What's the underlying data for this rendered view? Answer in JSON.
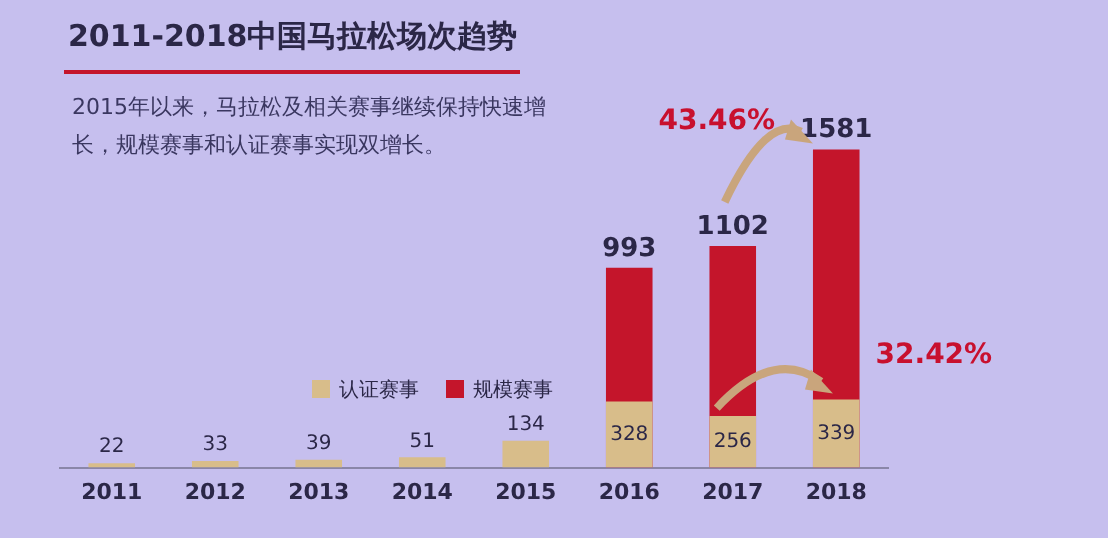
{
  "chart_data": {
    "type": "bar",
    "title": "2011-2018中国马拉松场次趋势",
    "subtitle": "2015年以来，马拉松及相关赛事继续保持快速增长，规模赛事和认证赛事实现双增长。",
    "categories": [
      "2011",
      "2012",
      "2013",
      "2014",
      "2015",
      "2016",
      "2017",
      "2018"
    ],
    "series": [
      {
        "name": "认证赛事",
        "color": "#d8bd8a",
        "values": [
          22,
          33,
          39,
          51,
          134,
          328,
          256,
          339
        ]
      },
      {
        "name": "规模赛事",
        "color": "#c4152b",
        "values": [
          null,
          null,
          null,
          null,
          null,
          993,
          1102,
          1581
        ]
      }
    ],
    "data_labels": true,
    "legend": "bottom",
    "grid": false,
    "annotations": [
      "43.46%",
      "32.42%"
    ]
  }
}
